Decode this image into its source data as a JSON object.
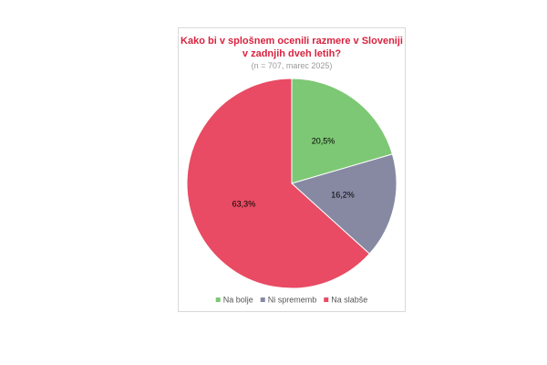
{
  "chart_data": {
    "type": "pie",
    "title": "Kako bi v splošnem ocenili razmere v Sloveniji v zadnjih dveh letih?",
    "subtitle": "(n = 707, marec 2025)",
    "categories": [
      "Na bolje",
      "Ni sprememb",
      "Na slabše"
    ],
    "values": [
      20.5,
      16.2,
      63.3
    ],
    "value_labels": [
      "20,5%",
      "16,2%",
      "63,3%"
    ],
    "colors": [
      "#7dc874",
      "#8789a3",
      "#e84b63"
    ],
    "legend": "bottom"
  }
}
